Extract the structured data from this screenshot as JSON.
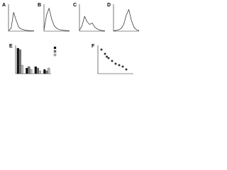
{
  "chart_data": [
    {
      "type": "line",
      "panel": "A",
      "x": [
        0,
        1,
        2,
        3,
        4,
        5,
        6,
        7,
        8,
        9,
        10
      ],
      "values": [
        2,
        10,
        70,
        40,
        15,
        8,
        5,
        3,
        2,
        1,
        1
      ],
      "xlim": [
        0,
        10
      ],
      "ylim": [
        0,
        100
      ]
    },
    {
      "type": "line",
      "panel": "B",
      "x": [
        0,
        1,
        2,
        3,
        4,
        5,
        6,
        7,
        8,
        9,
        10
      ],
      "values": [
        5,
        60,
        85,
        45,
        20,
        10,
        6,
        4,
        3,
        2,
        1
      ],
      "xlim": [
        0,
        10
      ],
      "ylim": [
        0,
        100
      ]
    },
    {
      "type": "line",
      "panel": "C",
      "x": [
        0,
        1,
        2,
        3,
        4,
        5,
        6,
        7,
        8,
        9,
        10
      ],
      "values": [
        3,
        20,
        55,
        35,
        25,
        30,
        15,
        8,
        4,
        2,
        1
      ],
      "xlim": [
        0,
        10
      ],
      "ylim": [
        0,
        100
      ]
    },
    {
      "type": "line",
      "panel": "D",
      "x": [
        0,
        1,
        2,
        3,
        4,
        5,
        6,
        7,
        8,
        9,
        10
      ],
      "values": [
        1,
        3,
        5,
        10,
        25,
        60,
        80,
        40,
        15,
        5,
        2
      ],
      "xlim": [
        0,
        10
      ],
      "ylim": [
        0,
        100
      ]
    },
    {
      "type": "bar",
      "panel": "E",
      "categories": [
        null,
        null,
        null,
        null
      ],
      "series": [
        {
          "color": "#111111",
          "values": [
            90,
            20,
            25,
            15
          ]
        },
        {
          "color": "#777777",
          "values": [
            85,
            25,
            20,
            10
          ]
        },
        {
          "color": "#bbbbbb",
          "values": [
            30,
            15,
            10,
            20
          ]
        }
      ],
      "ylim": [
        0,
        100
      ]
    },
    {
      "type": "scatter",
      "panel": "F",
      "x": [
        1,
        2,
        2.5,
        3,
        4,
        5,
        6,
        7,
        8
      ],
      "values": [
        8.5,
        7,
        6,
        5.5,
        4.5,
        3.5,
        3,
        2.5,
        1.5
      ],
      "color": "#333333",
      "xlim": [
        0,
        10
      ],
      "ylim": [
        0,
        10
      ]
    }
  ]
}
